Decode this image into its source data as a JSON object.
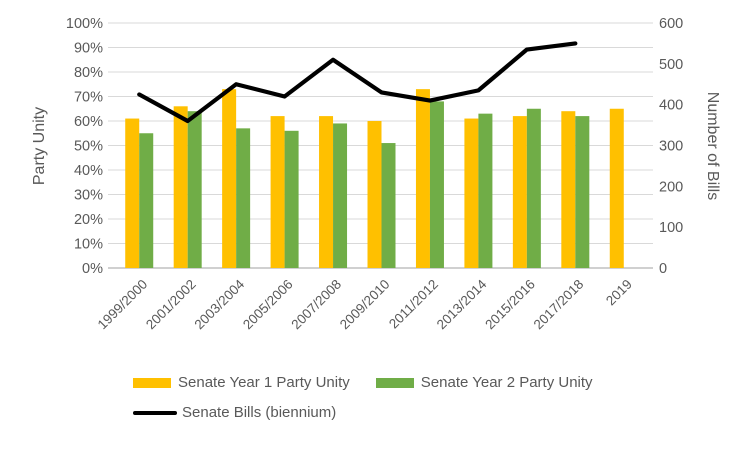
{
  "chart_data": {
    "type": "bar",
    "subtype": "grouped-bars-with-line-overlay",
    "title": "",
    "categories": [
      "1999/2000",
      "2001/2002",
      "2003/2004",
      "2005/2006",
      "2007/2008",
      "2009/2010",
      "2011/2012",
      "2013/2014",
      "2015/2016",
      "2017/2018",
      "2019"
    ],
    "series": [
      {
        "name": "Senate Year 1 Party Unity",
        "kind": "bar",
        "axis": "left",
        "unit": "%",
        "color": "#FFC000",
        "values": [
          61,
          66,
          73,
          62,
          62,
          60,
          73,
          61,
          62,
          64,
          65
        ]
      },
      {
        "name": "Senate Year 2 Party Unity",
        "kind": "bar",
        "axis": "left",
        "unit": "%",
        "color": "#70AD47",
        "values": [
          55,
          64,
          57,
          56,
          59,
          51,
          68,
          63,
          65,
          62,
          null
        ]
      },
      {
        "name": "Senate Bills (biennium)",
        "kind": "line",
        "axis": "right",
        "unit": "bills",
        "color": "#000000",
        "values": [
          425,
          360,
          450,
          420,
          510,
          430,
          410,
          435,
          535,
          550,
          null
        ]
      }
    ],
    "left_axis": {
      "title": "Party Unity",
      "min": 0,
      "max": 100,
      "step": 10,
      "tick_labels": [
        "100%",
        "90%",
        "80%",
        "70%",
        "60%",
        "50%",
        "40%",
        "30%",
        "20%",
        "10%",
        "0%"
      ]
    },
    "right_axis": {
      "title": "Number of Bills",
      "min": 0,
      "max": 600,
      "step": 100,
      "tick_labels": [
        "600",
        "500",
        "400",
        "300",
        "200",
        "100",
        "0"
      ]
    },
    "grid": true,
    "legend_position": "bottom-left",
    "colors": {
      "gridline": "#D9D9D9",
      "axis_line": "#C0C0C0",
      "axis_text": "#595959"
    }
  },
  "legend": {
    "items": [
      {
        "label": "Senate Year 1 Party Unity",
        "swatch": "bar",
        "color": "#FFC000"
      },
      {
        "label": "Senate Year 2 Party Unity",
        "swatch": "bar",
        "color": "#70AD47"
      },
      {
        "label": "Senate Bills (biennium)",
        "swatch": "line",
        "color": "#000000"
      }
    ]
  }
}
